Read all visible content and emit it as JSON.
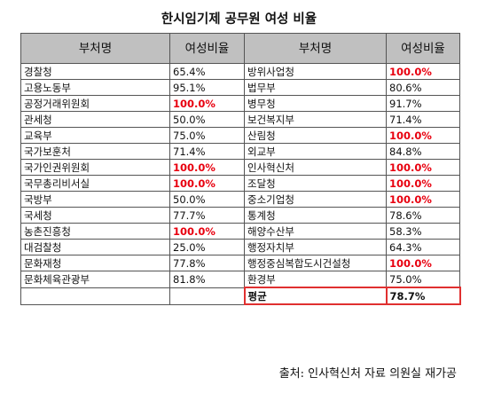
{
  "title": "한시임기제 공무원 여성 비율",
  "headers": [
    "부처명",
    "여성비율",
    "부처명",
    "여성비율"
  ],
  "colors": {
    "highlight": "#e8000f",
    "header_bg": "#c0c0c0",
    "average_border": "#e03030"
  },
  "rows": [
    [
      {
        "name": "경찰청",
        "pct": "65.4%",
        "red": false
      },
      {
        "name": "방위사업청",
        "pct": "100.0%",
        "red": true
      }
    ],
    [
      {
        "name": "고용노동부",
        "pct": "95.1%",
        "red": false
      },
      {
        "name": "법무부",
        "pct": "80.6%",
        "red": false
      }
    ],
    [
      {
        "name": "공정거래위원회",
        "pct": "100.0%",
        "red": true
      },
      {
        "name": "병무청",
        "pct": "91.7%",
        "red": false
      }
    ],
    [
      {
        "name": "관세청",
        "pct": "50.0%",
        "red": false
      },
      {
        "name": "보건복지부",
        "pct": "71.4%",
        "red": false
      }
    ],
    [
      {
        "name": "교육부",
        "pct": "75.0%",
        "red": false
      },
      {
        "name": "산림청",
        "pct": "100.0%",
        "red": true
      }
    ],
    [
      {
        "name": "국가보훈처",
        "pct": "71.4%",
        "red": false
      },
      {
        "name": "외교부",
        "pct": "84.8%",
        "red": false
      }
    ],
    [
      {
        "name": "국가인권위원회",
        "pct": "100.0%",
        "red": true
      },
      {
        "name": "인사혁신처",
        "pct": "100.0%",
        "red": true
      }
    ],
    [
      {
        "name": "국무총리비서실",
        "pct": "100.0%",
        "red": true
      },
      {
        "name": "조달청",
        "pct": "100.0%",
        "red": true
      }
    ],
    [
      {
        "name": "국방부",
        "pct": "50.0%",
        "red": false
      },
      {
        "name": "중소기업청",
        "pct": "100.0%",
        "red": true
      }
    ],
    [
      {
        "name": "국세청",
        "pct": "77.7%",
        "red": false
      },
      {
        "name": "통계청",
        "pct": "78.6%",
        "red": false
      }
    ],
    [
      {
        "name": "농촌진흥청",
        "pct": "100.0%",
        "red": true
      },
      {
        "name": "해양수산부",
        "pct": "58.3%",
        "red": false
      }
    ],
    [
      {
        "name": "대검찰청",
        "pct": "25.0%",
        "red": false
      },
      {
        "name": "행정자치부",
        "pct": "64.3%",
        "red": false
      }
    ],
    [
      {
        "name": "문화재청",
        "pct": "77.8%",
        "red": false
      },
      {
        "name": "행정중심복합도시건설청",
        "pct": "100.0%",
        "red": true
      }
    ],
    [
      {
        "name": "문화체육관광부",
        "pct": "81.8%",
        "red": false
      },
      {
        "name": "환경부",
        "pct": "75.0%",
        "red": false
      }
    ]
  ],
  "average": {
    "label": "평균",
    "value": "78.7%"
  },
  "source": "출처: 인사혁신처 자료 의원실 재가공"
}
